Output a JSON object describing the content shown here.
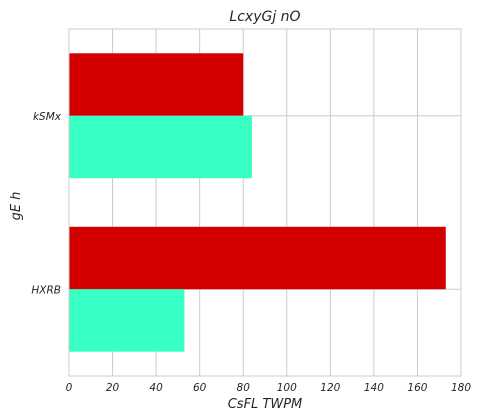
{
  "chart_data": {
    "type": "bar",
    "orientation": "horizontal",
    "title": "LcxyGj nO",
    "xlabel": "CsFL TWPM",
    "ylabel": "gE  h",
    "categories": [
      "kSMx",
      "HXRB"
    ],
    "series": [
      {
        "color": "#d40000",
        "values": [
          80,
          173
        ]
      },
      {
        "color": "#38ffc4",
        "values": [
          84,
          53
        ]
      }
    ],
    "xlim": [
      0,
      180
    ],
    "xticks": [
      0,
      20,
      40,
      60,
      80,
      100,
      120,
      140,
      160,
      180
    ],
    "grid": true,
    "legend": "none"
  }
}
